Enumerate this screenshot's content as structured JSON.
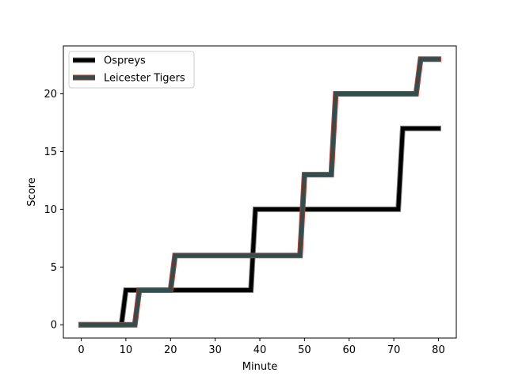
{
  "chart_data": {
    "type": "line",
    "title": "",
    "xlabel": "Minute",
    "ylabel": "Score",
    "xlim": [
      -4,
      84
    ],
    "ylim": [
      -1.15,
      24.15
    ],
    "xticks": [
      0,
      10,
      20,
      30,
      40,
      50,
      60,
      70,
      80
    ],
    "yticks": [
      0,
      5,
      10,
      15,
      20
    ],
    "grid": false,
    "legend": "upper left",
    "series": [
      {
        "name": "Ospreys",
        "color": "#000000",
        "edge_color": "#808080",
        "x": [
          0,
          9,
          10,
          20,
          21,
          38,
          39,
          71,
          72,
          80
        ],
        "y": [
          0,
          0,
          3,
          3,
          3,
          3,
          10,
          10,
          17,
          17
        ]
      },
      {
        "name": "Leicester Tigers",
        "color": "#2f4f4f",
        "edge_color": "#c0392b",
        "x": [
          0,
          12,
          13,
          20,
          21,
          49,
          50,
          56,
          57,
          75,
          76,
          80
        ],
        "y": [
          0,
          0,
          3,
          3,
          6,
          6,
          13,
          13,
          20,
          20,
          23,
          23
        ]
      }
    ]
  }
}
